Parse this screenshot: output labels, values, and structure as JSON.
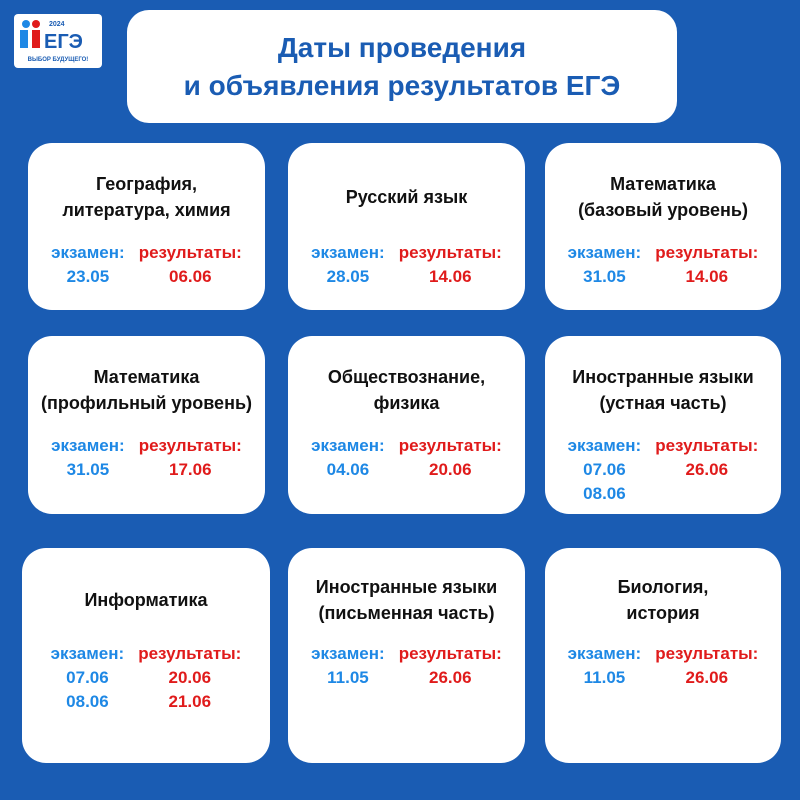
{
  "logo": {
    "year": "2024",
    "name": "ЕГЭ",
    "slogan": "ВЫБОР БУДУЩЕГО!"
  },
  "title": [
    "Даты проведения",
    "и объявления результатов ЕГЭ"
  ],
  "cards": [
    {
      "subject": [
        "География,",
        "литература, химия"
      ],
      "exam_label": "экзамен:",
      "exam_dates": [
        "23.05"
      ],
      "results_label": "результаты:",
      "results_dates": [
        "06.06"
      ]
    },
    {
      "subject": [
        "Русский язык"
      ],
      "exam_label": "экзамен:",
      "exam_dates": [
        "28.05"
      ],
      "results_label": "результаты:",
      "results_dates": [
        "14.06"
      ]
    },
    {
      "subject": [
        "Математика",
        "(базовый уровень)"
      ],
      "exam_label": "экзамен:",
      "exam_dates": [
        "31.05"
      ],
      "results_label": "результаты:",
      "results_dates": [
        "14.06"
      ]
    },
    {
      "subject": [
        "Математика",
        "(профильный уровень)"
      ],
      "exam_label": "экзамен:",
      "exam_dates": [
        "31.05"
      ],
      "results_label": "результаты:",
      "results_dates": [
        "17.06"
      ]
    },
    {
      "subject": [
        "Обществознание,",
        "физика"
      ],
      "exam_label": "экзамен:",
      "exam_dates": [
        "04.06"
      ],
      "results_label": "результаты:",
      "results_dates": [
        "20.06"
      ]
    },
    {
      "subject": [
        "Иностранные языки",
        "(устная часть)"
      ],
      "exam_label": "экзамен:",
      "exam_dates": [
        "07.06",
        "08.06"
      ],
      "results_label": "результаты:",
      "results_dates": [
        "26.06"
      ]
    },
    {
      "subject": [
        "Информатика"
      ],
      "exam_label": "экзамен:",
      "exam_dates": [
        "07.06",
        "08.06"
      ],
      "results_label": "результаты:",
      "results_dates": [
        "20.06",
        "21.06"
      ]
    },
    {
      "subject": [
        "Иностранные языки",
        "(письменная часть)"
      ],
      "exam_label": "экзамен:",
      "exam_dates": [
        "11.05"
      ],
      "results_label": "результаты:",
      "results_dates": [
        "26.06"
      ]
    },
    {
      "subject": [
        "Биология,",
        "история"
      ],
      "exam_label": "экзамен:",
      "exam_dates": [
        "11.05"
      ],
      "results_label": "результаты:",
      "results_dates": [
        "26.06"
      ]
    }
  ]
}
